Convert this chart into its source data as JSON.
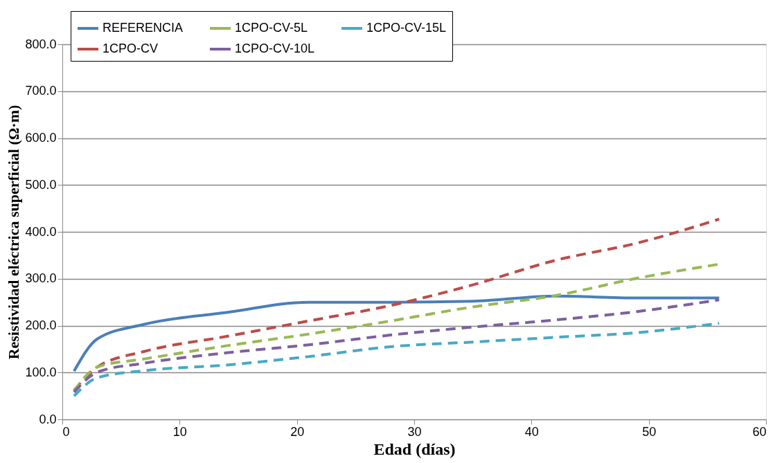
{
  "chart_data": {
    "type": "line",
    "xlabel": "Edad (días)",
    "ylabel": "Resistividad eléctrica superficial (Ω·m)",
    "x": [
      1,
      3,
      7,
      14,
      21,
      28,
      35,
      42,
      49,
      56
    ],
    "series": [
      {
        "name": "REFERENCIA",
        "color": "#4a7ebb",
        "line_style": "solid",
        "values": [
          103,
          172,
          203,
          228,
          250,
          250,
          252,
          263,
          259,
          259
        ]
      },
      {
        "name": "1CPO-CV",
        "color": "#be4b48",
        "line_style": "dashed",
        "values": [
          62,
          112,
          145,
          177,
          210,
          243,
          287,
          339,
          376,
          427
        ]
      },
      {
        "name": "1CPO-CV-5L",
        "color": "#98b954",
        "line_style": "dashed",
        "values": [
          60,
          112,
          129,
          157,
          182,
          210,
          240,
          264,
          301,
          331
        ]
      },
      {
        "name": "1CPO-CV-10L",
        "color": "#7d5fa0",
        "line_style": "dashed",
        "values": [
          58,
          101,
          120,
          142,
          159,
          180,
          197,
          212,
          230,
          255
        ]
      },
      {
        "name": "1CPO-CV-15L",
        "color": "#46aac5",
        "line_style": "dashed",
        "values": [
          50,
          89,
          104,
          116,
          134,
          155,
          165,
          175,
          185,
          205
        ]
      }
    ],
    "xlim": [
      0,
      60
    ],
    "xticks": [
      0,
      10,
      20,
      30,
      40,
      50,
      60
    ],
    "ylim": [
      0,
      800
    ],
    "yticks": [
      {
        "value": 0,
        "label": "0.0"
      },
      {
        "value": 100,
        "label": "100.0"
      },
      {
        "value": 200,
        "label": "200.0"
      },
      {
        "value": 300,
        "label": "300.0"
      },
      {
        "value": 400,
        "label": "400.0"
      },
      {
        "value": 500,
        "label": "500.0"
      },
      {
        "value": 600,
        "label": "600.0"
      },
      {
        "value": 700,
        "label": "700.0"
      },
      {
        "value": 800,
        "label": "800.0"
      }
    ],
    "grid": "y",
    "legend": "top left",
    "marker": "none"
  }
}
